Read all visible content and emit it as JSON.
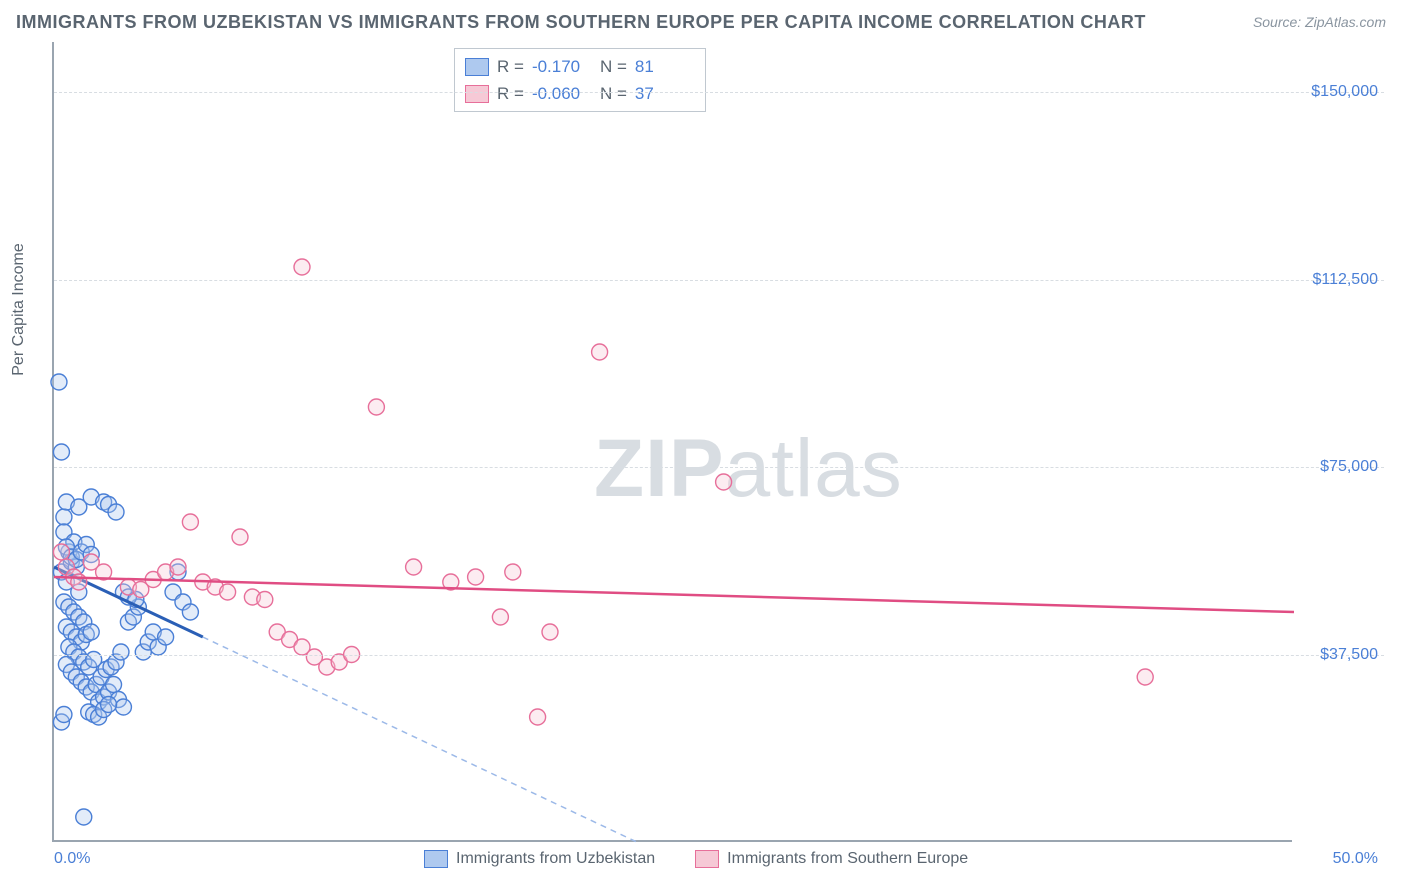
{
  "title": "IMMIGRANTS FROM UZBEKISTAN VS IMMIGRANTS FROM SOUTHERN EUROPE PER CAPITA INCOME CORRELATION CHART",
  "source": "Source: ZipAtlas.com",
  "ylabel": "Per Capita Income",
  "watermark_bold": "ZIP",
  "watermark_rest": "atlas",
  "chart": {
    "type": "scatter",
    "xlim": [
      0,
      50
    ],
    "ylim": [
      0,
      160000
    ],
    "x_ticks": [
      {
        "v": 0,
        "label": "0.0%"
      },
      {
        "v": 50,
        "label": "50.0%"
      }
    ],
    "y_ticks": [
      {
        "v": 37500,
        "label": "$37,500"
      },
      {
        "v": 75000,
        "label": "$75,000"
      },
      {
        "v": 112500,
        "label": "$112,500"
      },
      {
        "v": 150000,
        "label": "$150,000"
      }
    ],
    "grid_color": "#d8dde2",
    "axis_color": "#9aa5b0",
    "background_color": "#ffffff",
    "marker_radius": 8,
    "series": [
      {
        "name": "Immigrants from Uzbekistan",
        "fill": "#aec9ef",
        "stroke": "#4a7fd6",
        "r_label": "R =",
        "r": "-0.170",
        "n_label": "N =",
        "n": "81",
        "trend_solid": {
          "x1": 0,
          "y1": 55000,
          "x2": 6,
          "y2": 41000,
          "color": "#2a5fb6",
          "width": 3
        },
        "trend_dashed": {
          "x1": 6,
          "y1": 41000,
          "x2": 23.5,
          "y2": 0,
          "color": "#9cb9e8",
          "width": 1.5,
          "dash": "6 5"
        },
        "points": [
          [
            0.2,
            92000
          ],
          [
            0.3,
            78000
          ],
          [
            0.4,
            65000
          ],
          [
            0.4,
            62000
          ],
          [
            0.5,
            68000
          ],
          [
            0.6,
            58000
          ],
          [
            0.3,
            54000
          ],
          [
            0.5,
            52000
          ],
          [
            0.7,
            56000
          ],
          [
            0.8,
            60000
          ],
          [
            0.9,
            55000
          ],
          [
            1.0,
            50000
          ],
          [
            0.4,
            48000
          ],
          [
            0.6,
            47000
          ],
          [
            0.8,
            46000
          ],
          [
            1.0,
            45000
          ],
          [
            1.2,
            44000
          ],
          [
            0.5,
            43000
          ],
          [
            0.7,
            42000
          ],
          [
            0.9,
            41000
          ],
          [
            1.1,
            40000
          ],
          [
            1.3,
            41500
          ],
          [
            1.5,
            42000
          ],
          [
            0.6,
            39000
          ],
          [
            0.8,
            38000
          ],
          [
            1.0,
            37000
          ],
          [
            1.2,
            36000
          ],
          [
            1.4,
            35000
          ],
          [
            1.6,
            36500
          ],
          [
            0.5,
            35500
          ],
          [
            0.7,
            34000
          ],
          [
            0.9,
            33000
          ],
          [
            1.1,
            32000
          ],
          [
            1.3,
            31000
          ],
          [
            1.5,
            30000
          ],
          [
            1.7,
            31500
          ],
          [
            1.9,
            33000
          ],
          [
            2.1,
            34500
          ],
          [
            2.3,
            35000
          ],
          [
            2.5,
            36000
          ],
          [
            2.7,
            38000
          ],
          [
            1.8,
            28000
          ],
          [
            2.0,
            29000
          ],
          [
            2.2,
            30000
          ],
          [
            2.4,
            31500
          ],
          [
            2.6,
            28500
          ],
          [
            2.8,
            27000
          ],
          [
            1.4,
            26000
          ],
          [
            1.6,
            25500
          ],
          [
            1.8,
            25000
          ],
          [
            2.0,
            26500
          ],
          [
            2.2,
            27500
          ],
          [
            3.0,
            44000
          ],
          [
            3.2,
            45000
          ],
          [
            3.4,
            47000
          ],
          [
            3.6,
            38000
          ],
          [
            3.8,
            40000
          ],
          [
            4.0,
            42000
          ],
          [
            4.2,
            39000
          ],
          [
            4.5,
            41000
          ],
          [
            4.8,
            50000
          ],
          [
            5.0,
            54000
          ],
          [
            5.2,
            48000
          ],
          [
            5.5,
            46000
          ],
          [
            1.0,
            67000
          ],
          [
            1.5,
            69000
          ],
          [
            2.0,
            68000
          ],
          [
            2.2,
            67500
          ],
          [
            2.5,
            66000
          ],
          [
            0.5,
            59000
          ],
          [
            0.7,
            57000
          ],
          [
            0.9,
            56500
          ],
          [
            1.1,
            58000
          ],
          [
            1.3,
            59500
          ],
          [
            1.5,
            57500
          ],
          [
            2.8,
            50000
          ],
          [
            3.0,
            49000
          ],
          [
            3.3,
            48500
          ],
          [
            1.2,
            5000
          ],
          [
            0.3,
            24000
          ],
          [
            0.4,
            25500
          ]
        ]
      },
      {
        "name": "Immigrants from Southern Europe",
        "fill": "#f6c9d6",
        "stroke": "#e76f9a",
        "r_label": "R =",
        "r": "-0.060",
        "n_label": "N =",
        "n": "37",
        "trend_solid": {
          "x1": 0,
          "y1": 53000,
          "x2": 50,
          "y2": 46000,
          "color": "#e04d83",
          "width": 2.5
        },
        "points": [
          [
            0.3,
            58000
          ],
          [
            0.5,
            55000
          ],
          [
            0.8,
            53000
          ],
          [
            1.0,
            52000
          ],
          [
            1.5,
            56000
          ],
          [
            2.0,
            54000
          ],
          [
            3.0,
            51000
          ],
          [
            3.5,
            50500
          ],
          [
            4.0,
            52500
          ],
          [
            4.5,
            54000
          ],
          [
            5.0,
            55000
          ],
          [
            5.5,
            64000
          ],
          [
            6.0,
            52000
          ],
          [
            6.5,
            51000
          ],
          [
            7.0,
            50000
          ],
          [
            8.0,
            49000
          ],
          [
            8.5,
            48500
          ],
          [
            9.0,
            42000
          ],
          [
            9.5,
            40500
          ],
          [
            10.0,
            39000
          ],
          [
            10.5,
            37000
          ],
          [
            11.0,
            35000
          ],
          [
            11.5,
            36000
          ],
          [
            12.0,
            37500
          ],
          [
            10.0,
            115000
          ],
          [
            13.0,
            87000
          ],
          [
            14.5,
            55000
          ],
          [
            16.0,
            52000
          ],
          [
            18.0,
            45000
          ],
          [
            19.5,
            25000
          ],
          [
            22.0,
            98000
          ],
          [
            27.0,
            72000
          ],
          [
            17.0,
            53000
          ],
          [
            18.5,
            54000
          ],
          [
            20.0,
            42000
          ],
          [
            44.0,
            33000
          ],
          [
            7.5,
            61000
          ]
        ]
      }
    ]
  }
}
